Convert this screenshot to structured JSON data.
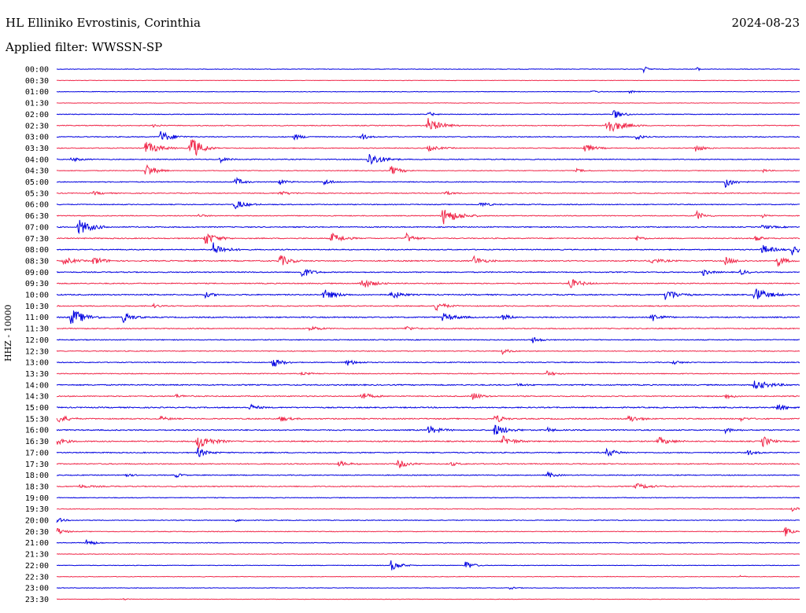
{
  "header": {
    "station": "HL Elliniko Evrostinis, Corinthia",
    "date": "2024-08-23",
    "filter": "Applied filter: WWSSN-SP",
    "channel_label": "HHZ - 10000"
  },
  "colors": {
    "blue": "#0000e0",
    "red": "#f0284a"
  },
  "chart_data": {
    "type": "line",
    "title": "HL Elliniko Evrostinis, Corinthia",
    "ylabel": "HHZ - 10000",
    "categories": [
      "00:00",
      "00:30",
      "01:00",
      "01:30",
      "02:00",
      "02:30",
      "03:00",
      "03:30",
      "04:00",
      "04:30",
      "05:00",
      "05:30",
      "06:00",
      "06:30",
      "07:00",
      "07:30",
      "08:00",
      "08:30",
      "09:00",
      "09:30",
      "10:00",
      "10:30",
      "11:00",
      "11:30",
      "12:00",
      "12:30",
      "13:00",
      "13:30",
      "14:00",
      "14:30",
      "15:00",
      "15:30",
      "16:00",
      "16:30",
      "17:00",
      "17:30",
      "18:00",
      "18:30",
      "19:00",
      "19:30",
      "20:00",
      "20:30",
      "21:00",
      "21:30",
      "22:00",
      "22:30",
      "23:00",
      "23:30"
    ],
    "series_colors": [
      "blue",
      "red"
    ],
    "noise": [
      0.08,
      0.06,
      0.08,
      0.06,
      0.1,
      0.12,
      0.12,
      0.12,
      0.12,
      0.1,
      0.12,
      0.12,
      0.12,
      0.12,
      0.14,
      0.14,
      0.14,
      0.16,
      0.14,
      0.14,
      0.16,
      0.14,
      0.16,
      0.14,
      0.12,
      0.12,
      0.12,
      0.12,
      0.16,
      0.14,
      0.16,
      0.16,
      0.16,
      0.16,
      0.14,
      0.14,
      0.12,
      0.14,
      0.1,
      0.1,
      0.1,
      0.1,
      0.1,
      0.08,
      0.08,
      0.08,
      0.08,
      0.06
    ],
    "events": [
      [
        [
          0.79,
          1.0,
          5
        ],
        [
          0.86,
          0.8,
          4
        ]
      ],
      [],
      [
        [
          0.72,
          0.5,
          6
        ],
        [
          0.77,
          0.5,
          6
        ]
      ],
      [],
      [
        [
          0.5,
          0.8,
          6
        ],
        [
          0.75,
          1.4,
          10
        ]
      ],
      [
        [
          0.5,
          2.2,
          14
        ],
        [
          0.74,
          2.6,
          16
        ],
        [
          0.13,
          0.5,
          6
        ]
      ],
      [
        [
          0.14,
          1.8,
          12
        ],
        [
          0.32,
          0.8,
          10
        ],
        [
          0.41,
          1.2,
          6
        ],
        [
          0.78,
          1.0,
          6
        ]
      ],
      [
        [
          0.12,
          2.0,
          14
        ],
        [
          0.18,
          2.4,
          10
        ],
        [
          0.18,
          1.8,
          12
        ],
        [
          0.5,
          0.8,
          12
        ],
        [
          0.71,
          1.4,
          10
        ],
        [
          0.86,
          1.2,
          8
        ]
      ],
      [
        [
          0.02,
          0.6,
          10
        ],
        [
          0.22,
          0.9,
          8
        ],
        [
          0.42,
          2.2,
          14
        ]
      ],
      [
        [
          0.12,
          2.2,
          10
        ],
        [
          0.45,
          1.4,
          10
        ],
        [
          0.7,
          0.5,
          8
        ],
        [
          0.95,
          0.5,
          6
        ]
      ],
      [
        [
          0.24,
          1.4,
          8
        ],
        [
          0.3,
          0.9,
          8
        ],
        [
          0.36,
          1.0,
          8
        ],
        [
          0.9,
          1.6,
          10
        ]
      ],
      [
        [
          0.05,
          0.5,
          10
        ],
        [
          0.3,
          0.6,
          12
        ],
        [
          0.52,
          0.6,
          10
        ]
      ],
      [
        [
          0.24,
          1.4,
          12
        ],
        [
          0.57,
          0.7,
          10
        ]
      ],
      [
        [
          0.19,
          0.5,
          8
        ],
        [
          0.52,
          2.6,
          16
        ],
        [
          0.86,
          1.6,
          8
        ],
        [
          0.95,
          0.5,
          6
        ]
      ],
      [
        [
          0.03,
          2.4,
          14
        ],
        [
          0.95,
          0.6,
          12
        ]
      ],
      [
        [
          0.2,
          2.0,
          12
        ],
        [
          0.37,
          1.6,
          12
        ],
        [
          0.47,
          1.6,
          8
        ],
        [
          0.78,
          0.8,
          8
        ],
        [
          0.94,
          1.2,
          6
        ]
      ],
      [
        [
          0.21,
          2.2,
          12
        ],
        [
          0.95,
          1.4,
          12
        ],
        [
          0.99,
          1.6,
          8
        ]
      ],
      [
        [
          0.01,
          1.2,
          10
        ],
        [
          0.05,
          1.4,
          10
        ],
        [
          0.3,
          2.0,
          10
        ],
        [
          0.56,
          1.6,
          10
        ],
        [
          0.8,
          0.8,
          12
        ],
        [
          0.9,
          1.2,
          10
        ],
        [
          0.97,
          1.8,
          8
        ]
      ],
      [
        [
          0.33,
          1.6,
          10
        ],
        [
          0.87,
          1.0,
          8
        ],
        [
          0.92,
          0.8,
          8
        ]
      ],
      [
        [
          0.41,
          1.6,
          12
        ],
        [
          0.69,
          1.6,
          12
        ]
      ],
      [
        [
          0.2,
          0.8,
          8
        ],
        [
          0.36,
          1.6,
          12
        ],
        [
          0.45,
          1.4,
          10
        ],
        [
          0.82,
          2.0,
          12
        ],
        [
          0.94,
          2.2,
          14
        ]
      ],
      [
        [
          0.13,
          0.6,
          6
        ],
        [
          0.51,
          1.4,
          10
        ]
      ],
      [
        [
          0.02,
          2.6,
          14
        ],
        [
          0.09,
          1.6,
          10
        ],
        [
          0.52,
          1.2,
          14
        ],
        [
          0.6,
          0.8,
          10
        ],
        [
          0.8,
          1.4,
          10
        ]
      ],
      [
        [
          0.34,
          0.8,
          10
        ],
        [
          0.47,
          0.8,
          8
        ]
      ],
      [
        [
          0.64,
          1.0,
          8
        ]
      ],
      [
        [
          0.6,
          0.8,
          8
        ]
      ],
      [
        [
          0.29,
          1.6,
          10
        ],
        [
          0.39,
          1.0,
          10
        ],
        [
          0.83,
          0.6,
          8
        ]
      ],
      [
        [
          0.33,
          0.4,
          10
        ],
        [
          0.66,
          0.8,
          8
        ]
      ],
      [
        [
          0.62,
          0.4,
          8
        ],
        [
          0.94,
          1.4,
          16
        ]
      ],
      [
        [
          0.16,
          0.5,
          10
        ],
        [
          0.41,
          1.2,
          10
        ],
        [
          0.56,
          1.4,
          8
        ],
        [
          0.9,
          0.8,
          8
        ]
      ],
      [
        [
          0.26,
          1.0,
          8
        ],
        [
          0.97,
          1.4,
          8
        ]
      ],
      [
        [
          0.0,
          1.6,
          10
        ],
        [
          0.14,
          0.7,
          8
        ],
        [
          0.3,
          0.8,
          10
        ],
        [
          0.59,
          1.4,
          8
        ],
        [
          0.77,
          1.2,
          10
        ],
        [
          0.92,
          0.6,
          8
        ]
      ],
      [
        [
          0.5,
          1.2,
          12
        ],
        [
          0.59,
          1.8,
          12
        ],
        [
          0.66,
          0.8,
          6
        ],
        [
          0.9,
          0.8,
          8
        ]
      ],
      [
        [
          0.0,
          1.0,
          10
        ],
        [
          0.19,
          2.4,
          14
        ],
        [
          0.6,
          1.6,
          12
        ],
        [
          0.81,
          1.2,
          12
        ],
        [
          0.95,
          1.8,
          8
        ]
      ],
      [
        [
          0.19,
          1.4,
          10
        ],
        [
          0.74,
          1.4,
          10
        ],
        [
          0.93,
          0.8,
          8
        ]
      ],
      [
        [
          0.38,
          0.8,
          10
        ],
        [
          0.46,
          1.4,
          10
        ],
        [
          0.53,
          0.6,
          8
        ]
      ],
      [
        [
          0.09,
          0.6,
          8
        ],
        [
          0.16,
          0.8,
          6
        ],
        [
          0.66,
          1.0,
          8
        ]
      ],
      [
        [
          0.03,
          0.4,
          16
        ],
        [
          0.78,
          0.8,
          16
        ]
      ],
      [],
      [
        [
          0.99,
          0.8,
          6
        ]
      ],
      [
        [
          0.0,
          1.0,
          6
        ],
        [
          0.24,
          0.6,
          4
        ]
      ],
      [
        [
          0.0,
          1.2,
          8
        ],
        [
          0.98,
          1.8,
          6
        ]
      ],
      [
        [
          0.04,
          1.2,
          8
        ]
      ],
      [],
      [
        [
          0.45,
          1.6,
          10
        ],
        [
          0.55,
          1.6,
          8
        ]
      ],
      [
        [
          0.92,
          0.4,
          4
        ]
      ],
      [
        [
          0.61,
          0.4,
          6
        ]
      ],
      [
        [
          0.09,
          0.4,
          4
        ]
      ]
    ]
  }
}
